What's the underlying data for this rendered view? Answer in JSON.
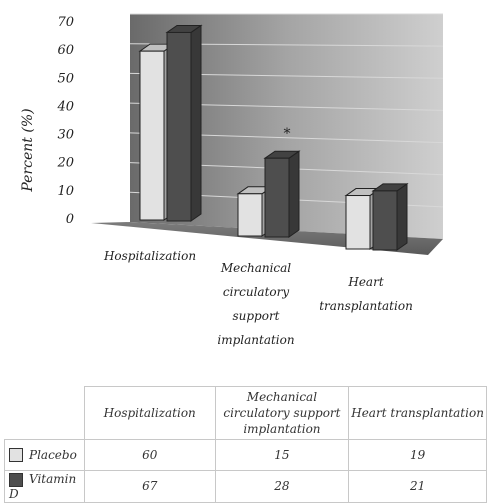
{
  "chart_data": {
    "type": "bar",
    "ylabel": "Percent (%)",
    "ylim": [
      0,
      70
    ],
    "yticks": [
      "0",
      "10",
      "20",
      "30",
      "40",
      "50",
      "60",
      "70"
    ],
    "categories": [
      "Hospitalization",
      "Mechanical circulatory support implantation",
      "Heart transplantation"
    ],
    "category_lines": [
      [
        "Hospitalization"
      ],
      [
        "Mechanical",
        "circulatory",
        "support",
        "implantation"
      ],
      [
        "Heart",
        "transplantation"
      ]
    ],
    "series": [
      {
        "name": "Placebo",
        "values": [
          60,
          15,
          19
        ],
        "color": "#e2e2e2"
      },
      {
        "name": "Vitamin D",
        "values": [
          67,
          28,
          21
        ],
        "color": "#4e4e4e"
      }
    ],
    "annotations": [
      "*"
    ],
    "grid": true,
    "legend": "data table below chart"
  },
  "table": {
    "headers": [
      "Hospitalization",
      "Mechanical circulatory support implantation",
      "Heart transplantation"
    ],
    "rows": [
      {
        "label": "Placebo",
        "values": [
          "60",
          "15",
          "19"
        ]
      },
      {
        "label": "Vitamin D",
        "values": [
          "67",
          "28",
          "21"
        ]
      }
    ]
  }
}
